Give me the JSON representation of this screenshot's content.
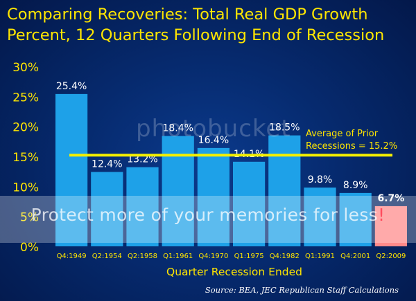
{
  "title_line1": "Comparing Recoveries:  Total Real GDP Growth",
  "title_line2": "Percent, 12 Quarters Following End of Recession",
  "source": "Source:  BEA, JEC Republican Staff Calculations",
  "watermark": {
    "logo": "photobucket",
    "text_main": "Protect more of your memories for less",
    "text_accent": "!"
  },
  "colors": {
    "title": "#ffe600",
    "bar": "#1ea1e8",
    "highlight_bar": "#ff8a8a",
    "average_line": "#f5f000",
    "text": "#ffffff"
  },
  "chart_data": {
    "type": "bar",
    "categories": [
      "Q4:1949",
      "Q2:1954",
      "Q2:1958",
      "Q1:1961",
      "Q4:1970",
      "Q1:1975",
      "Q4:1982",
      "Q1:1991",
      "Q4:2001",
      "Q2:2009"
    ],
    "values": [
      25.4,
      12.4,
      13.2,
      18.4,
      16.4,
      14.1,
      18.5,
      9.8,
      8.9,
      6.7
    ],
    "data_labels": [
      "25.4%",
      "12.4%",
      "13.2%",
      "18.4%",
      "16.4%",
      "14.1%",
      "18.5%",
      "9.8%",
      "8.9%",
      "6.7%"
    ],
    "highlight_index": 9,
    "xlabel": "Quarter Recession Ended",
    "ylabel": "",
    "ylim": [
      0,
      30
    ],
    "yticks": [
      0,
      5,
      10,
      15,
      20,
      25,
      30
    ],
    "ytick_labels": [
      "0%",
      "5%",
      "10%",
      "15%",
      "20%",
      "25%",
      "30%"
    ],
    "grid": false,
    "annotation": {
      "line1": "Average of Prior",
      "line2": "Recessions = 15.2%",
      "value": 15.2
    }
  }
}
